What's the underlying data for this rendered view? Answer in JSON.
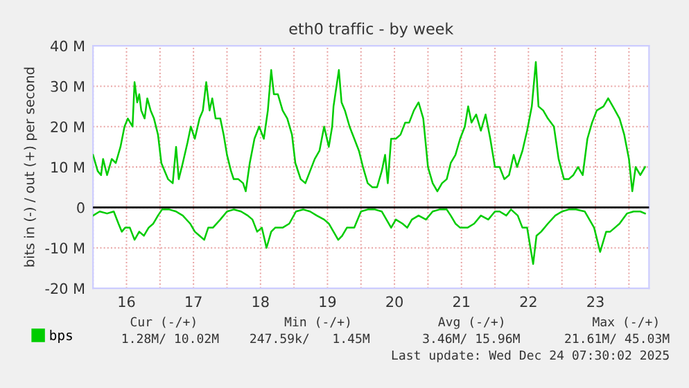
{
  "chart_data": {
    "type": "line",
    "title": "eth0 traffic - by week",
    "ylabel": "bits in (-) / out (+) per second",
    "xlim": [
      15.5,
      23.8
    ],
    "ylim": [
      -20,
      40
    ],
    "xticks": [
      {
        "value": 15.5,
        "label": null
      },
      {
        "value": 16,
        "label": "16"
      },
      {
        "value": 16.5,
        "label": null
      },
      {
        "value": 17,
        "label": "17"
      },
      {
        "value": 17.5,
        "label": null
      },
      {
        "value": 18,
        "label": "18"
      },
      {
        "value": 18.5,
        "label": null
      },
      {
        "value": 19,
        "label": "19"
      },
      {
        "value": 19.5,
        "label": null
      },
      {
        "value": 20,
        "label": "20"
      },
      {
        "value": 20.5,
        "label": null
      },
      {
        "value": 21,
        "label": "21"
      },
      {
        "value": 21.5,
        "label": null
      },
      {
        "value": 22,
        "label": "22"
      },
      {
        "value": 22.5,
        "label": null
      },
      {
        "value": 23,
        "label": "23"
      },
      {
        "value": 23.5,
        "label": null
      }
    ],
    "yticks": [
      {
        "value": -20,
        "label": "-20 M"
      },
      {
        "value": -10,
        "label": "-10 M"
      },
      0,
      {
        "value": 10,
        "label": "10 M"
      },
      {
        "value": 20,
        "label": "20 M"
      },
      {
        "value": 30,
        "label": "30 M"
      },
      {
        "value": 40,
        "label": "40 M"
      }
    ],
    "grid": true,
    "legend": "bottom left",
    "line_style": "solid",
    "marker": "none",
    "ref_lines": [
      {
        "axis": "y",
        "value": 0,
        "color": "#000000"
      }
    ],
    "series": [
      {
        "name": "bps",
        "color": "#00cc00",
        "x": [
          15.5,
          15.57,
          15.62,
          15.65,
          15.71,
          15.78,
          15.84,
          15.91,
          15.97,
          16.02,
          16.09,
          16.12,
          16.16,
          16.19,
          16.22,
          16.27,
          16.31,
          16.36,
          16.41,
          16.47,
          16.52,
          16.57,
          16.62,
          16.69,
          16.74,
          16.78,
          16.84,
          16.91,
          16.96,
          17.02,
          17.09,
          17.14,
          17.19,
          17.24,
          17.28,
          17.33,
          17.4,
          17.45,
          17.5,
          17.56,
          17.6,
          17.67,
          17.74,
          17.78,
          17.84,
          17.91,
          17.98,
          18.05,
          18.11,
          18.16,
          18.2,
          18.26,
          18.33,
          18.4,
          18.47,
          18.52,
          18.6,
          18.67,
          18.74,
          18.81,
          18.88,
          18.95,
          19.02,
          19.07,
          19.09,
          19.17,
          19.21,
          19.26,
          19.33,
          19.4,
          19.47,
          19.53,
          19.6,
          19.67,
          19.74,
          19.81,
          19.86,
          19.9,
          19.95,
          20.02,
          20.09,
          20.16,
          20.22,
          20.29,
          20.36,
          20.43,
          20.5,
          20.57,
          20.64,
          20.71,
          20.78,
          20.84,
          20.91,
          20.98,
          21.05,
          21.1,
          21.15,
          21.22,
          21.29,
          21.36,
          21.43,
          21.5,
          21.57,
          21.64,
          21.71,
          21.78,
          21.83,
          21.91,
          21.98,
          22.05,
          22.11,
          22.15,
          22.22,
          22.29,
          22.38,
          22.45,
          22.53,
          22.6,
          22.67,
          22.74,
          22.81,
          22.88,
          22.95,
          23.02,
          23.12,
          23.19,
          23.26,
          23.36,
          23.43,
          23.5,
          23.55,
          23.6,
          23.67,
          23.74
        ],
        "values": [
          13,
          9,
          8,
          12,
          8,
          12,
          11,
          15,
          20,
          22,
          20,
          31,
          26,
          28,
          24,
          22,
          27,
          24,
          22,
          18,
          11,
          9,
          7,
          6,
          15,
          7,
          11,
          16,
          20,
          17,
          22,
          24,
          31,
          24,
          27,
          22,
          22,
          18,
          13,
          9,
          7,
          7,
          6,
          4,
          11,
          17,
          20,
          17,
          24,
          34,
          28,
          28,
          24,
          22,
          18,
          11,
          7,
          6,
          9,
          12,
          14,
          20,
          15,
          20,
          25,
          34,
          26,
          24,
          20,
          17,
          14,
          10,
          6,
          5,
          5,
          9,
          13,
          6,
          17,
          17,
          18,
          21,
          21,
          24,
          26,
          22,
          10,
          6,
          4,
          6,
          7,
          11,
          13,
          17,
          20,
          25,
          21,
          23,
          19,
          23,
          17,
          10,
          10,
          7,
          8,
          13,
          10,
          14,
          19,
          25,
          36,
          25,
          24,
          22,
          20,
          12,
          7,
          7,
          8,
          10,
          8,
          17,
          21,
          24,
          25,
          27,
          25,
          22,
          18,
          12,
          4,
          10,
          8,
          10
        ]
      },
      {
        "color": "#00cc00",
        "x": [
          15.5,
          15.6,
          15.71,
          15.81,
          15.88,
          15.93,
          15.98,
          16.05,
          16.12,
          16.19,
          16.26,
          16.33,
          16.4,
          16.47,
          16.53,
          16.64,
          16.74,
          16.84,
          16.95,
          17.02,
          17.09,
          17.16,
          17.22,
          17.29,
          17.4,
          17.5,
          17.6,
          17.71,
          17.81,
          17.88,
          17.95,
          18.02,
          18.09,
          18.16,
          18.22,
          18.33,
          18.43,
          18.53,
          18.64,
          18.74,
          18.84,
          18.95,
          19.02,
          19.09,
          19.16,
          19.22,
          19.29,
          19.4,
          19.5,
          19.6,
          19.71,
          19.81,
          19.88,
          19.95,
          20.02,
          20.12,
          20.19,
          20.26,
          20.36,
          20.47,
          20.57,
          20.67,
          20.78,
          20.84,
          20.91,
          20.98,
          21.09,
          21.19,
          21.29,
          21.4,
          21.5,
          21.57,
          21.67,
          21.74,
          21.84,
          21.91,
          21.98,
          22.07,
          22.12,
          22.19,
          22.29,
          22.4,
          22.5,
          22.6,
          22.71,
          22.84,
          22.91,
          22.98,
          23.07,
          23.16,
          23.22,
          23.29,
          23.36,
          23.47,
          23.57,
          23.67,
          23.74
        ],
        "values": [
          -2,
          -1,
          -1.5,
          -1,
          -4,
          -6,
          -5,
          -5,
          -8,
          -6,
          -7,
          -5,
          -4,
          -2,
          -0.5,
          -0.5,
          -1,
          -2,
          -4,
          -6,
          -7,
          -8,
          -5,
          -5,
          -3,
          -1,
          -0.5,
          -1,
          -2,
          -3,
          -6,
          -5,
          -10,
          -6,
          -5,
          -5,
          -4,
          -1,
          -0.5,
          -1,
          -2,
          -3,
          -4,
          -6,
          -8,
          -7,
          -5,
          -5,
          -1,
          -0.5,
          -0.5,
          -1,
          -3,
          -5,
          -3,
          -4,
          -5,
          -3,
          -2,
          -3,
          -1,
          -0.5,
          -0.5,
          -2,
          -4,
          -5,
          -5,
          -4,
          -2,
          -3,
          -1,
          -1,
          -2,
          -0.5,
          -2,
          -5,
          -5,
          -14,
          -7,
          -6,
          -4,
          -2,
          -1,
          -0.5,
          -0.5,
          -1,
          -3,
          -5,
          -11,
          -6,
          -6,
          -5,
          -4,
          -1.5,
          -1,
          -1,
          -1.5
        ]
      }
    ],
    "annotations": [
      "Cur (-/+)",
      "Min (-/+)",
      "Avg (-/+)",
      "Max (-/+)",
      "1.28M/ 10.02M",
      "247.59k/   1.45M",
      "3.46M/ 15.96M",
      "21.61M/ 45.03M",
      "Last update: Wed Dec 24 07:30:02 2025"
    ]
  }
}
